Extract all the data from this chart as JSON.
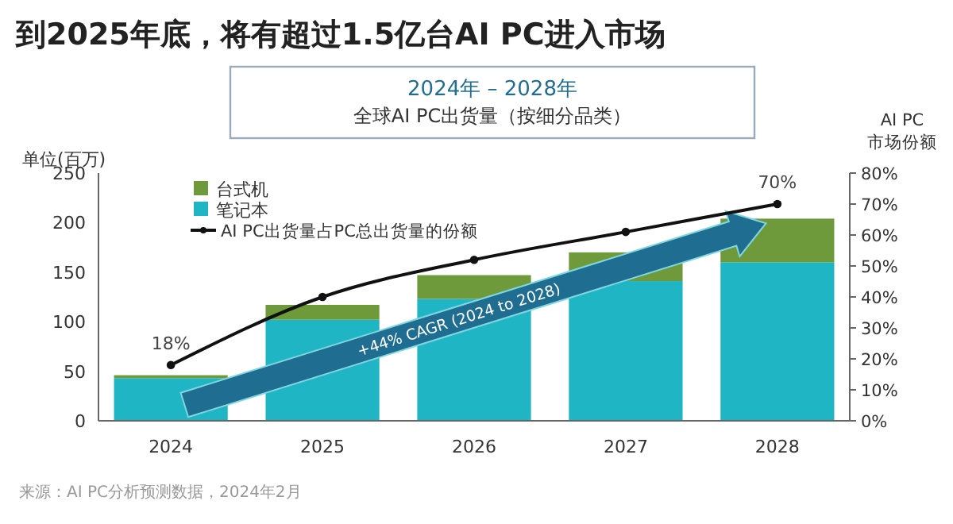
{
  "chart_data": {
    "type": "bar",
    "stacked": true,
    "title": "到2025年底，将有超过1.5亿台AI PC进入市场",
    "subtitle": "2024年 – 2028年",
    "ylabel": "单位(百万)",
    "y2label": "AI PC\n市场份额",
    "categories": [
      "2024",
      "2025",
      "2026",
      "2027",
      "2028"
    ],
    "series": [
      {
        "name": "笔记本",
        "color": "#1fb5c4",
        "values": [
          43,
          102,
          123,
          141,
          160
        ]
      },
      {
        "name": "台式机",
        "color": "#6e9a3c",
        "values": [
          3,
          15,
          24,
          29,
          44
        ]
      },
      {
        "name": "AI PC出货量占PC总出货量的份额",
        "type": "line",
        "axis": "y2",
        "color": "#111111",
        "marker": "circle",
        "values": [
          18,
          40,
          52,
          61,
          70
        ],
        "value_labels": [
          "18%",
          null,
          null,
          null,
          "70%"
        ]
      }
    ],
    "ylim": [
      0,
      250
    ],
    "yticks": [
      0,
      50,
      100,
      150,
      200,
      250
    ],
    "y2lim": [
      0,
      80
    ],
    "y2ticks": [
      {
        "value": 0,
        "label": "0%"
      },
      {
        "value": 10,
        "label": "10%"
      },
      {
        "value": 20,
        "label": "20%"
      },
      {
        "value": 30,
        "label": "30%"
      },
      {
        "value": 40,
        "label": "40%"
      },
      {
        "value": 50,
        "label": "50%"
      },
      {
        "value": 60,
        "label": "60%"
      },
      {
        "value": 70,
        "label": "70%"
      },
      {
        "value": 80,
        "label": "80%"
      }
    ],
    "legend": "top left",
    "grid": false,
    "annotations": [
      "+44% CAGR (2024 to 2028)",
      "来源：AI PC分析预测数据，2024年2月",
      "全球AI PC出货量（按细分品类）"
    ]
  }
}
